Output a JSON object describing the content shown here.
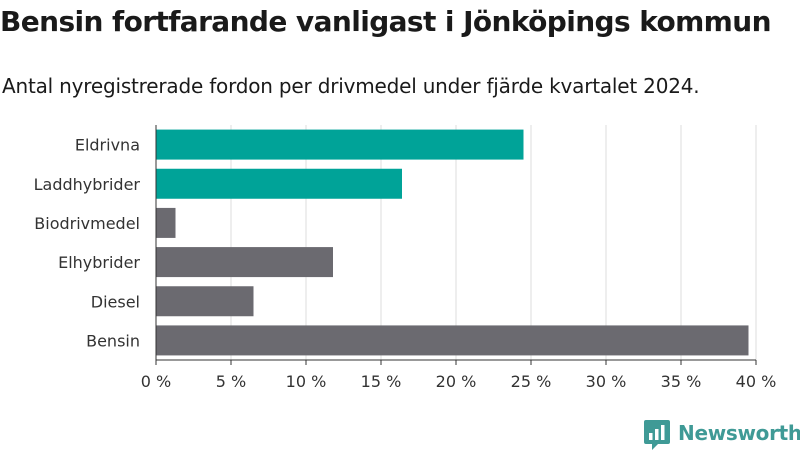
{
  "title": "Bensin fortfarande vanligast i Jönköpings kommun",
  "subtitle": "Antal nyregistrerade fordon per drivmedel under fjärde kvartalet 2024.",
  "brand": {
    "name": "Newsworthy",
    "icon": "newsworthy-logo-icon",
    "color": "#3f9a96"
  },
  "colors": {
    "highlight": "#00a398",
    "default": "#6b6a70",
    "grid": "#dddddd",
    "axis": "#333333"
  },
  "chart_data": {
    "type": "bar",
    "orientation": "horizontal",
    "categories": [
      "Eldrivna",
      "Laddhybrider",
      "Biodrivmedel",
      "Elhybrider",
      "Diesel",
      "Bensin"
    ],
    "values": [
      24.5,
      16.4,
      1.3,
      11.8,
      6.5,
      39.5
    ],
    "highlighted": [
      true,
      true,
      false,
      false,
      false,
      false
    ],
    "xlim": [
      0,
      40
    ],
    "xticks": [
      0,
      5,
      10,
      15,
      20,
      25,
      30,
      35,
      40
    ],
    "tick_labels": [
      "0 %",
      "5 %",
      "10 %",
      "15 %",
      "20 %",
      "25 %",
      "30 %",
      "35 %",
      "40 %"
    ],
    "xlabel": "",
    "ylabel": "",
    "grid": true,
    "unit": "%"
  }
}
